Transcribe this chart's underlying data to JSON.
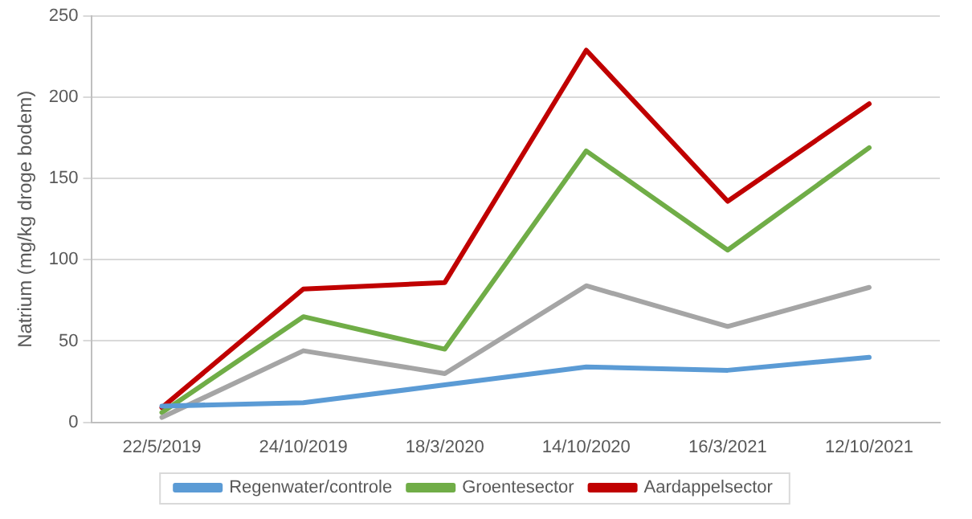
{
  "chart_data": {
    "type": "line",
    "ylabel": "Natrium (mg/kg droge bodem)",
    "categories": [
      "22/5/2019",
      "24/10/2019",
      "18/3/2020",
      "14/10/2020",
      "16/3/2021",
      "12/10/2021"
    ],
    "series": [
      {
        "name": "Regenwater/controle",
        "color": "#5b9bd5",
        "values": [
          10,
          12,
          23,
          34,
          32,
          40
        ]
      },
      {
        "color": "#a5a5a5",
        "values": [
          3,
          44,
          30,
          84,
          59,
          83
        ]
      },
      {
        "name": "Groentesector",
        "color": "#70ad47",
        "values": [
          6,
          65,
          45,
          167,
          106,
          169
        ]
      },
      {
        "name": "Aardappelsector",
        "color": "#c00000",
        "values": [
          9,
          82,
          86,
          229,
          136,
          196
        ]
      }
    ],
    "ylim": [
      0,
      250
    ],
    "yticks": [
      0,
      50,
      100,
      150,
      200,
      250
    ],
    "grid": "y",
    "legend": "bottom",
    "marker": "none",
    "line_style": "solid"
  }
}
